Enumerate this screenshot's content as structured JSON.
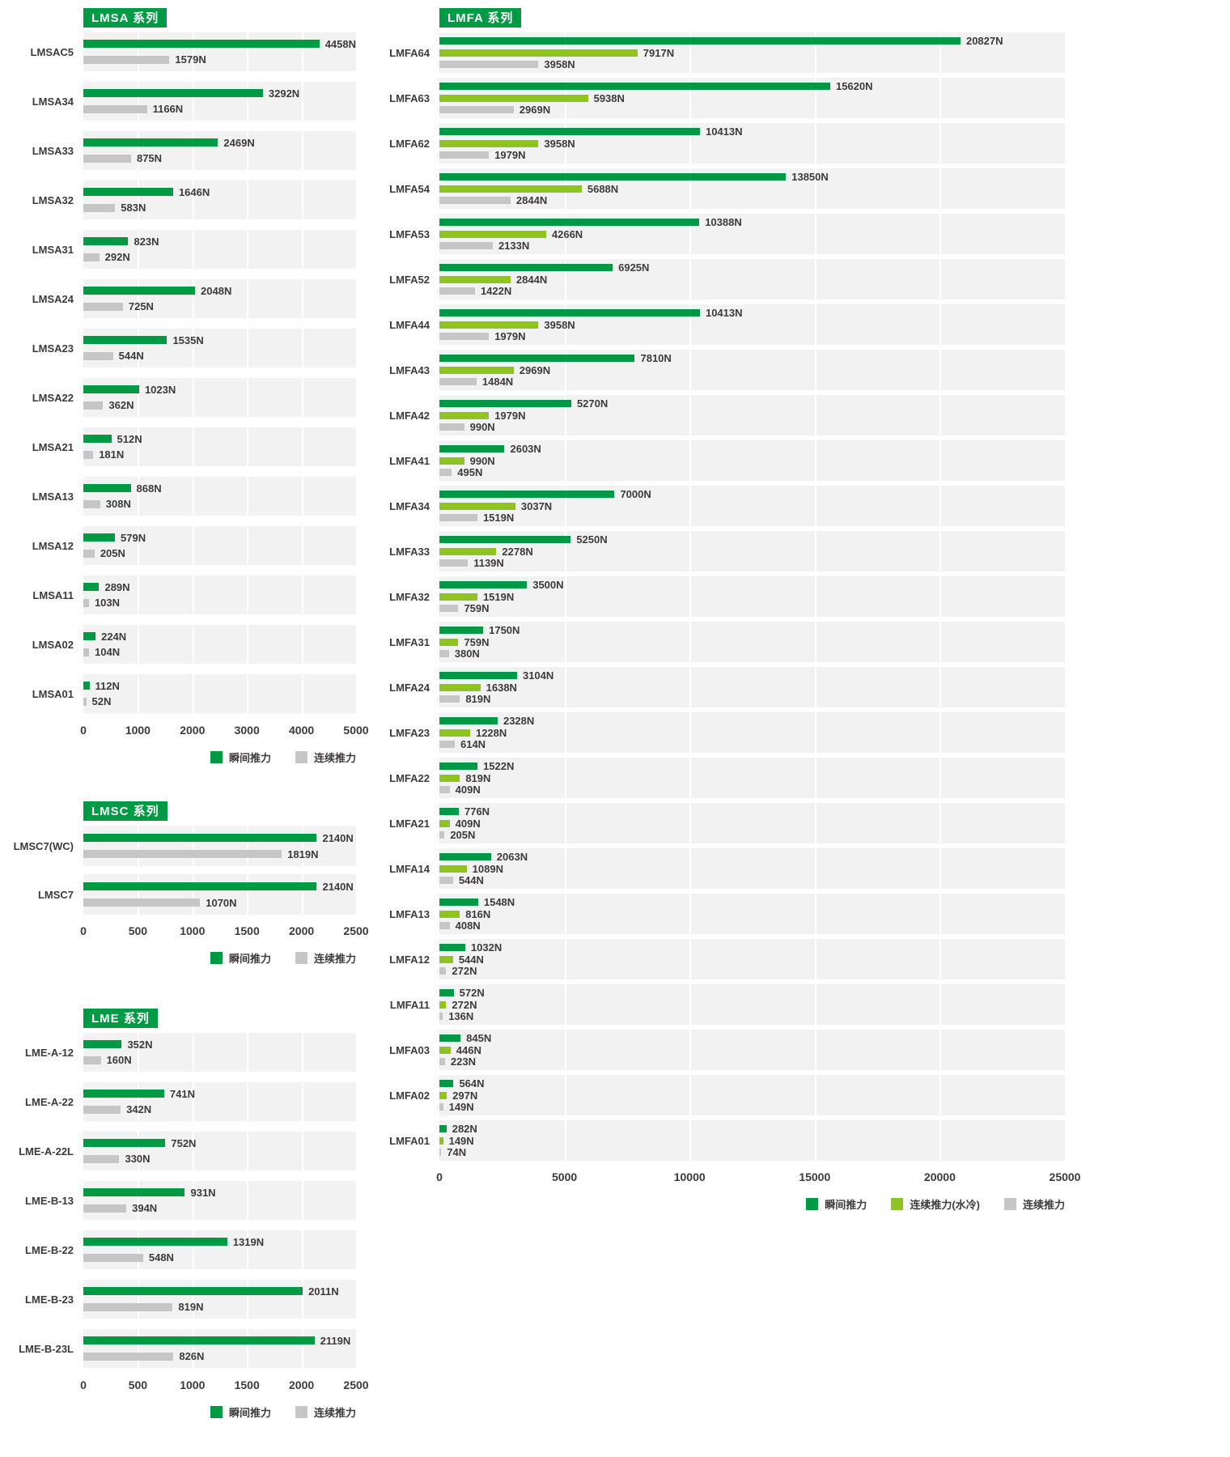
{
  "colors": {
    "instant": "#009944",
    "continuous_wc": "#8fc31f",
    "continuous": "#c6c6c6",
    "band_background": "#f2f2f2",
    "gridline": "#ffffff",
    "text": "#3e3a39",
    "badge_text": "#ffffff"
  },
  "chart_data": [
    {
      "id": "lmsa",
      "type": "bar",
      "orientation": "horizontal",
      "title": "LMSA 系列",
      "value_suffix": "N",
      "xlim": [
        0,
        5000
      ],
      "ticks": [
        0,
        1000,
        2000,
        3000,
        4000,
        5000
      ],
      "grid": true,
      "legend_position": "bottom-right",
      "categories": [
        "LMSAC5",
        "LMSA34",
        "LMSA33",
        "LMSA32",
        "LMSA31",
        "LMSA24",
        "LMSA23",
        "LMSA22",
        "LMSA21",
        "LMSA13",
        "LMSA12",
        "LMSA11",
        "LMSA02",
        "LMSA01"
      ],
      "series": [
        {
          "key": "instant",
          "name": "瞬间推力",
          "color": "#009944",
          "values": [
            4458,
            3292,
            2469,
            1646,
            823,
            2048,
            1535,
            1023,
            512,
            868,
            579,
            289,
            224,
            112
          ]
        },
        {
          "key": "continuous",
          "name": "连续推力",
          "color": "#c6c6c6",
          "values": [
            1579,
            1166,
            875,
            583,
            292,
            725,
            544,
            362,
            181,
            308,
            205,
            103,
            104,
            52
          ]
        }
      ]
    },
    {
      "id": "lmfa",
      "type": "bar",
      "orientation": "horizontal",
      "title": "LMFA 系列",
      "value_suffix": "N",
      "xlim": [
        0,
        25000
      ],
      "ticks": [
        0,
        5000,
        10000,
        15000,
        20000,
        25000
      ],
      "grid": true,
      "legend_position": "bottom-right",
      "categories": [
        "LMFA64",
        "LMFA63",
        "LMFA62",
        "LMFA54",
        "LMFA53",
        "LMFA52",
        "LMFA44",
        "LMFA43",
        "LMFA42",
        "LMFA41",
        "LMFA34",
        "LMFA33",
        "LMFA32",
        "LMFA31",
        "LMFA24",
        "LMFA23",
        "LMFA22",
        "LMFA21",
        "LMFA14",
        "LMFA13",
        "LMFA12",
        "LMFA11",
        "LMFA03",
        "LMFA02",
        "LMFA01"
      ],
      "series": [
        {
          "key": "instant",
          "name": "瞬间推力",
          "color": "#009944",
          "values": [
            20827,
            15620,
            10413,
            13850,
            10388,
            6925,
            10413,
            7810,
            5270,
            2603,
            7000,
            5250,
            3500,
            1750,
            3104,
            2328,
            1522,
            776,
            2063,
            1548,
            1032,
            572,
            845,
            564,
            282
          ]
        },
        {
          "key": "continuous_wc",
          "name": "连续推力(水冷)",
          "color": "#8fc31f",
          "values": [
            7917,
            5938,
            3958,
            5688,
            4266,
            2844,
            3958,
            2969,
            1979,
            990,
            3037,
            2278,
            1519,
            759,
            1638,
            1228,
            819,
            409,
            1089,
            816,
            544,
            272,
            446,
            297,
            149
          ]
        },
        {
          "key": "continuous",
          "name": "连续推力",
          "color": "#c6c6c6",
          "values": [
            3958,
            2969,
            1979,
            2844,
            2133,
            1422,
            1979,
            1484,
            990,
            495,
            1519,
            1139,
            759,
            380,
            819,
            614,
            409,
            205,
            544,
            408,
            272,
            136,
            223,
            149,
            74
          ]
        }
      ]
    },
    {
      "id": "lmsc",
      "type": "bar",
      "orientation": "horizontal",
      "title": "LMSC 系列",
      "value_suffix": "N",
      "xlim": [
        0,
        2500
      ],
      "ticks": [
        0,
        500,
        1000,
        1500,
        2000,
        2500
      ],
      "grid": true,
      "legend_position": "bottom-right",
      "categories": [
        "LMSC7(WC)",
        "LMSC7"
      ],
      "series": [
        {
          "key": "instant",
          "name": "瞬间推力",
          "color": "#009944",
          "values": [
            2140,
            2140
          ]
        },
        {
          "key": "continuous",
          "name": "连续推力",
          "color": "#c6c6c6",
          "values": [
            1819,
            1070
          ]
        }
      ]
    },
    {
      "id": "lme",
      "type": "bar",
      "orientation": "horizontal",
      "title": "LME 系列",
      "value_suffix": "N",
      "xlim": [
        0,
        2500
      ],
      "ticks": [
        0,
        500,
        1000,
        1500,
        2000,
        2500
      ],
      "grid": true,
      "legend_position": "bottom-right",
      "categories": [
        "LME-A-12",
        "LME-A-22",
        "LME-A-22L",
        "LME-B-13",
        "LME-B-22",
        "LME-B-23",
        "LME-B-23L"
      ],
      "series": [
        {
          "key": "instant",
          "name": "瞬间推力",
          "color": "#009944",
          "values": [
            352,
            741,
            752,
            931,
            1319,
            2011,
            2119
          ]
        },
        {
          "key": "continuous",
          "name": "连续推力",
          "color": "#c6c6c6",
          "values": [
            160,
            342,
            330,
            394,
            548,
            819,
            826
          ]
        }
      ]
    }
  ]
}
